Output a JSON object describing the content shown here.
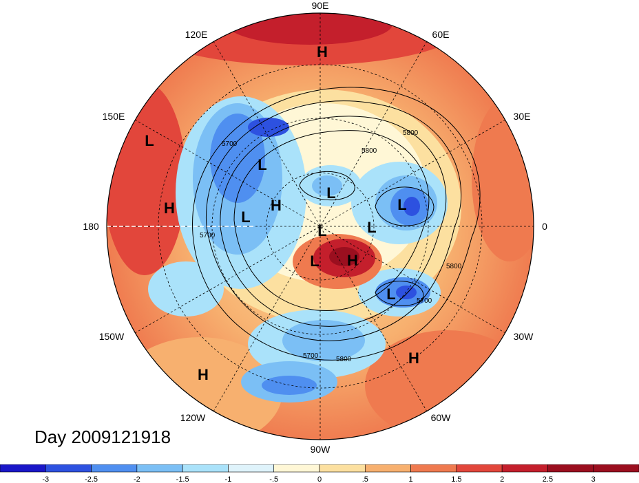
{
  "title": "Day 2009121918",
  "map": {
    "projection": "north-polar-stereographic",
    "longitude_labels": [
      "90E",
      "60E",
      "30E",
      "0",
      "30W",
      "60W",
      "90W",
      "120W",
      "150W",
      "180",
      "150E",
      "120E"
    ],
    "centers": [
      {
        "type": "H",
        "region": "north-pole-side-top"
      },
      {
        "type": "L",
        "region": "north-pacific-west"
      },
      {
        "type": "H",
        "region": "north-pacific-central"
      },
      {
        "type": "L",
        "region": "siberia-east"
      },
      {
        "type": "L",
        "region": "siberia-central"
      },
      {
        "type": "H",
        "region": "arctic-siberian-coast"
      },
      {
        "type": "L",
        "region": "kara-sea"
      },
      {
        "type": "L",
        "region": "pole"
      },
      {
        "type": "L",
        "region": "northern-europe"
      },
      {
        "type": "L",
        "region": "scandinavia"
      },
      {
        "type": "L",
        "region": "canadian-arctic"
      },
      {
        "type": "H",
        "region": "greenland"
      },
      {
        "type": "L",
        "region": "north-atlantic"
      },
      {
        "type": "H",
        "region": "subtropical-atlantic"
      },
      {
        "type": "H",
        "region": "subtropical-pacific"
      }
    ],
    "contour_labels": [
      "5700",
      "5800",
      "5800",
      "5700",
      "5700",
      "5800",
      "5700",
      "5800"
    ]
  },
  "colorbar": {
    "tick_labels": [
      "-3",
      "-2.5",
      "-2",
      "-1.5",
      "-1",
      "-.5",
      "0",
      ".5",
      "1",
      "1.5",
      "2",
      "2.5",
      "3"
    ],
    "colors": [
      "#1a17c8",
      "#2d51e0",
      "#4f8ff0",
      "#7bbff5",
      "#aae2fa",
      "#dff3fb",
      "#fff7d6",
      "#fce0a0",
      "#f7b06f",
      "#ef7a4f",
      "#e2463b",
      "#c41f2c",
      "#9b0f1f"
    ]
  }
}
